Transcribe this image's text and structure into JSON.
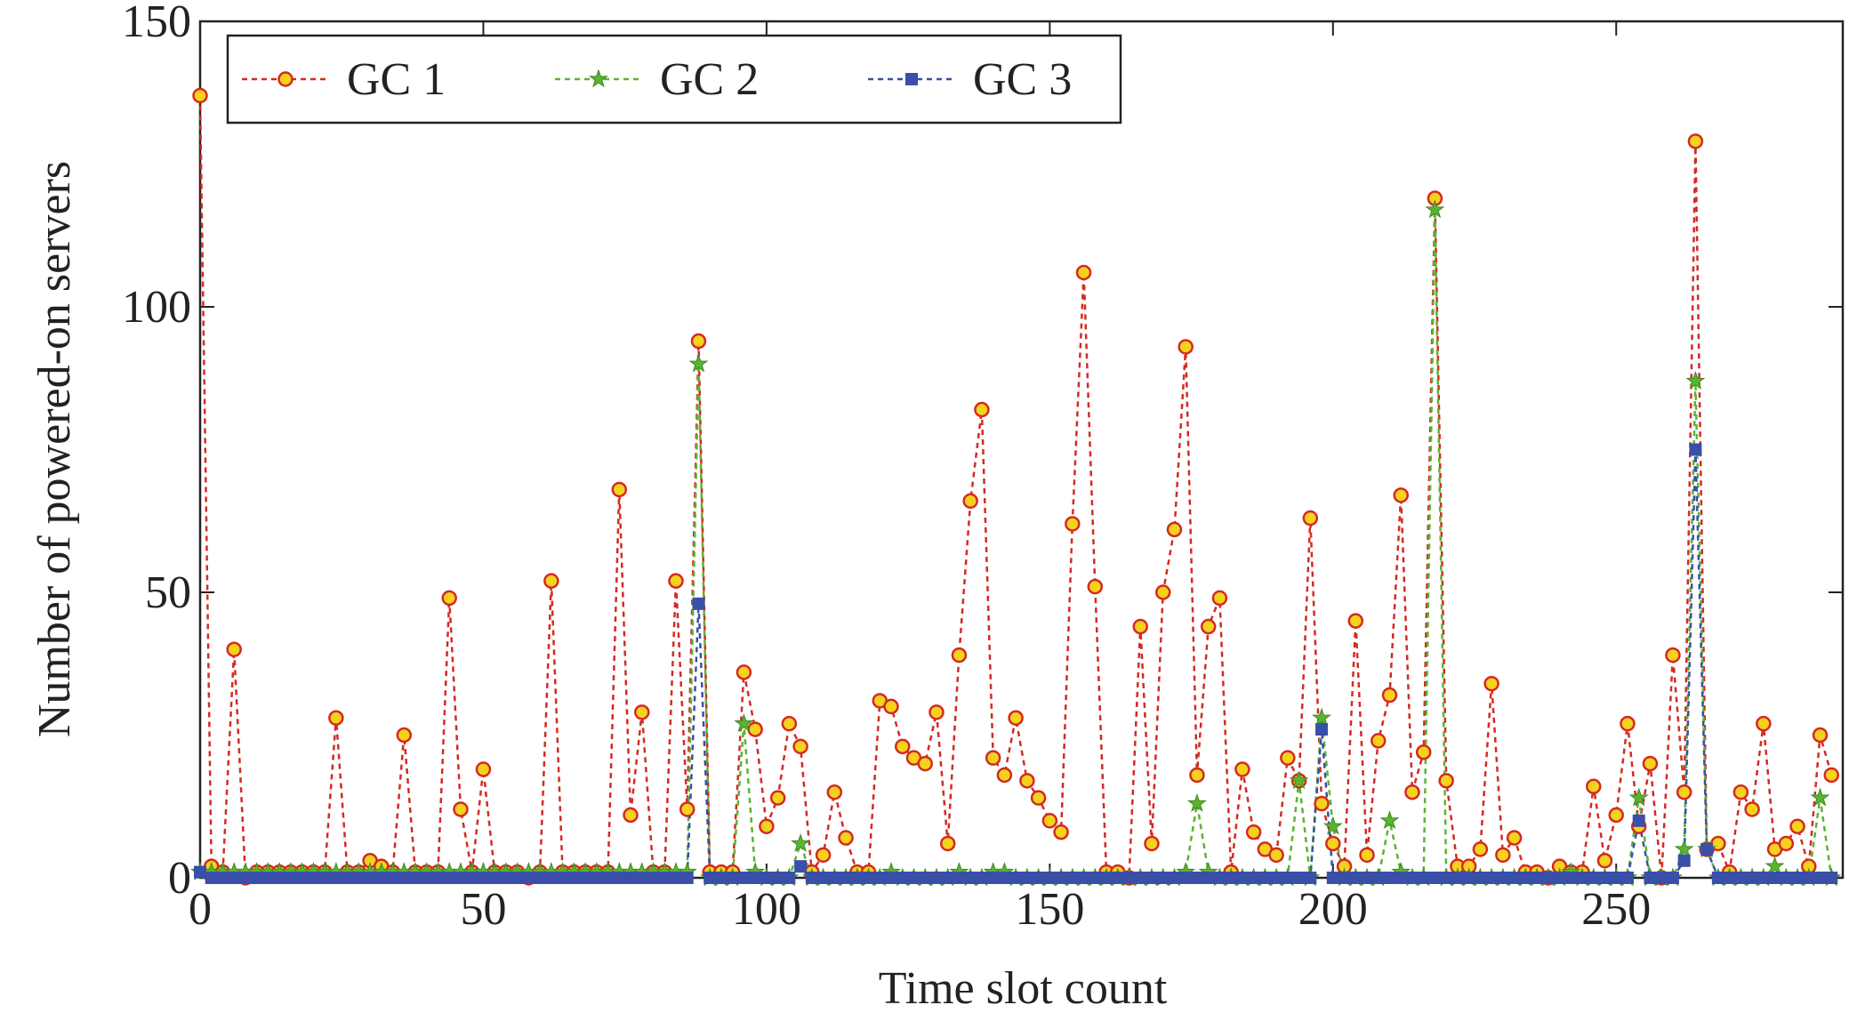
{
  "chart_data": {
    "type": "line",
    "x_label": "Time slot count",
    "y_label": "Number of powered-on servers",
    "x": [
      0,
      2,
      4,
      6,
      8,
      10,
      12,
      14,
      16,
      18,
      20,
      22,
      24,
      26,
      28,
      30,
      32,
      34,
      36,
      38,
      40,
      42,
      44,
      46,
      48,
      50,
      52,
      54,
      56,
      58,
      60,
      62,
      64,
      66,
      68,
      70,
      72,
      74,
      76,
      78,
      80,
      82,
      84,
      86,
      88,
      90,
      92,
      94,
      96,
      98,
      100,
      102,
      104,
      106,
      108,
      110,
      112,
      114,
      116,
      118,
      120,
      122,
      124,
      126,
      128,
      130,
      132,
      134,
      136,
      138,
      140,
      142,
      144,
      146,
      148,
      150,
      152,
      154,
      156,
      158,
      160,
      162,
      164,
      166,
      168,
      170,
      172,
      174,
      176,
      178,
      180,
      182,
      184,
      186,
      188,
      190,
      192,
      194,
      196,
      198,
      200,
      202,
      204,
      206,
      208,
      210,
      212,
      214,
      216,
      218,
      220,
      222,
      224,
      226,
      228,
      230,
      232,
      234,
      236,
      238,
      240,
      242,
      244,
      246,
      248,
      250,
      252,
      254,
      256,
      258,
      260,
      262,
      264,
      266,
      268,
      270,
      272,
      274,
      276,
      278,
      280,
      282,
      284,
      286,
      288
    ],
    "series": [
      {
        "name": "GC 1",
        "color": "#d42a22",
        "marker": "circle",
        "values": [
          137,
          2,
          1,
          40,
          0,
          1,
          1,
          1,
          1,
          1,
          1,
          1,
          28,
          1,
          1,
          3,
          2,
          1,
          25,
          1,
          1,
          1,
          49,
          12,
          1,
          19,
          1,
          1,
          1,
          0,
          1,
          52,
          1,
          1,
          1,
          1,
          1,
          68,
          11,
          29,
          1,
          1,
          52,
          12,
          94,
          1,
          1,
          1,
          36,
          26,
          9,
          14,
          27,
          23,
          1,
          4,
          15,
          7,
          1,
          1,
          31,
          30,
          23,
          21,
          20,
          29,
          6,
          39,
          66,
          82,
          21,
          18,
          28,
          17,
          14,
          10,
          8,
          62,
          106,
          51,
          1,
          1,
          0,
          44,
          6,
          50,
          61,
          93,
          18,
          44,
          49,
          1,
          19,
          8,
          5,
          4,
          21,
          17,
          63,
          13,
          6,
          2,
          45,
          4,
          24,
          32,
          67,
          15,
          22,
          119,
          17,
          2,
          2,
          5,
          34,
          4,
          7,
          1,
          1,
          0,
          2,
          1,
          1,
          16,
          3,
          11,
          27,
          9,
          20,
          0,
          39,
          15,
          129,
          5,
          6,
          1,
          15,
          12,
          27,
          5,
          6,
          9,
          2,
          25,
          18
        ]
      },
      {
        "name": "GC 2",
        "color": "#5ab432",
        "marker": "star",
        "values": [
          1,
          1,
          1,
          1,
          1,
          1,
          1,
          1,
          1,
          1,
          1,
          1,
          1,
          1,
          1,
          1,
          1,
          1,
          1,
          1,
          1,
          1,
          1,
          1,
          1,
          1,
          1,
          1,
          1,
          1,
          1,
          1,
          1,
          1,
          1,
          1,
          1,
          1,
          1,
          1,
          1,
          1,
          1,
          1,
          90,
          0,
          0,
          0,
          27,
          1,
          0,
          0,
          0,
          6,
          0,
          0,
          0,
          0,
          0,
          0,
          0,
          1,
          0,
          0,
          0,
          0,
          0,
          1,
          0,
          0,
          1,
          1,
          0,
          0,
          0,
          0,
          0,
          0,
          0,
          0,
          0,
          0,
          0,
          0,
          0,
          0,
          0,
          1,
          13,
          1,
          0,
          0,
          0,
          0,
          0,
          0,
          0,
          17,
          0,
          28,
          9,
          0,
          0,
          0,
          0,
          10,
          1,
          0,
          0,
          117,
          0,
          0,
          0,
          0,
          0,
          0,
          0,
          0,
          0,
          0,
          0,
          1,
          0,
          0,
          0,
          0,
          0,
          14,
          0,
          0,
          0,
          5,
          87,
          5,
          0,
          0,
          0,
          0,
          0,
          2,
          0,
          0,
          0,
          14,
          0
        ]
      },
      {
        "name": "GC 3",
        "color": "#3a4fa8",
        "marker": "square",
        "values": [
          1,
          0,
          0,
          0,
          0,
          0,
          0,
          0,
          0,
          0,
          0,
          0,
          0,
          0,
          0,
          0,
          0,
          0,
          0,
          0,
          0,
          0,
          0,
          0,
          0,
          0,
          0,
          0,
          0,
          0,
          0,
          0,
          0,
          0,
          0,
          0,
          0,
          0,
          0,
          0,
          0,
          0,
          0,
          0,
          48,
          0,
          0,
          0,
          0,
          0,
          0,
          0,
          0,
          2,
          0,
          0,
          0,
          0,
          0,
          0,
          0,
          0,
          0,
          0,
          0,
          0,
          0,
          0,
          0,
          0,
          0,
          0,
          0,
          0,
          0,
          0,
          0,
          0,
          0,
          0,
          0,
          0,
          0,
          0,
          0,
          0,
          0,
          0,
          0,
          0,
          0,
          0,
          0,
          0,
          0,
          0,
          0,
          0,
          0,
          26,
          0,
          0,
          0,
          0,
          0,
          0,
          0,
          0,
          0,
          0,
          0,
          0,
          0,
          0,
          0,
          0,
          0,
          0,
          0,
          0,
          0,
          0,
          0,
          0,
          0,
          0,
          0,
          10,
          0,
          0,
          0,
          3,
          75,
          5,
          0,
          0,
          0,
          0,
          0,
          0,
          0,
          0,
          0,
          0,
          0
        ]
      }
    ],
    "xlim": [
      0,
      290
    ],
    "ylim": [
      0,
      150
    ],
    "xticks": [
      0,
      50,
      100,
      150,
      200,
      250
    ],
    "yticks": [
      0,
      50,
      100,
      150
    ],
    "legend": "upper left"
  }
}
